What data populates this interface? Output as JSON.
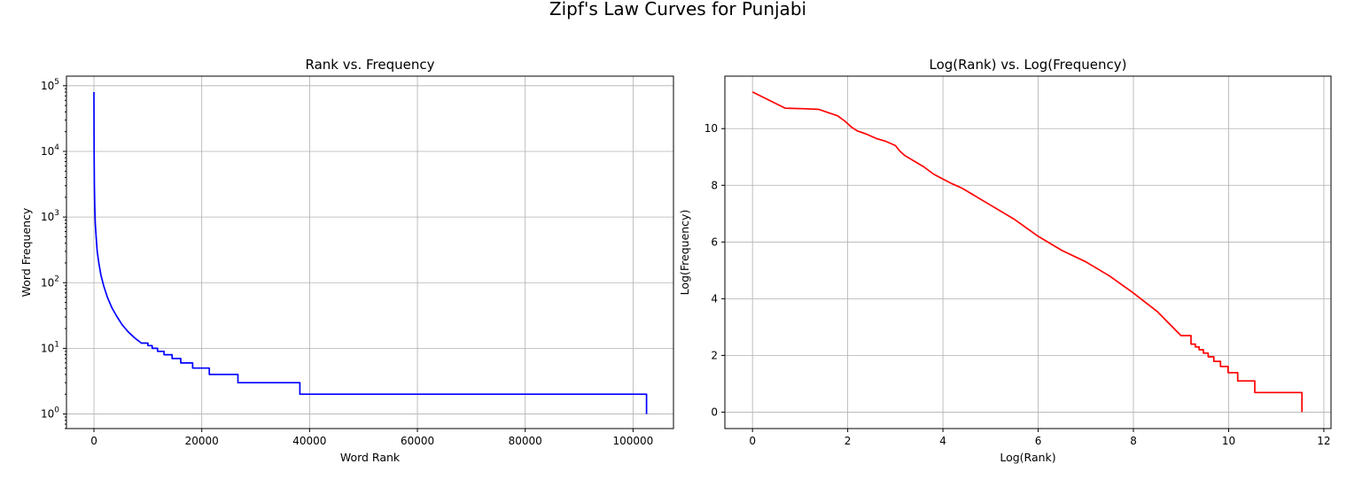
{
  "figure": {
    "suptitle": "Zipf's Law Curves for Punjabi"
  },
  "chart_data": [
    {
      "type": "line",
      "title": "Rank vs. Frequency",
      "xlabel": "Word Rank",
      "ylabel": "Word Frequency",
      "yscale": "log",
      "xlim": [
        -5100,
        107500
      ],
      "ylim": [
        0.6,
        140000
      ],
      "xticks": [
        0,
        20000,
        40000,
        60000,
        80000,
        100000
      ],
      "xtick_labels": [
        "0",
        "20000",
        "40000",
        "60000",
        "80000",
        "100000"
      ],
      "yticks": [
        1,
        10,
        100,
        1000,
        10000,
        100000
      ],
      "ytick_labels": [
        {
          "base": "10",
          "exp": "0"
        },
        {
          "base": "10",
          "exp": "1"
        },
        {
          "base": "10",
          "exp": "2"
        },
        {
          "base": "10",
          "exp": "3"
        },
        {
          "base": "10",
          "exp": "4"
        },
        {
          "base": "10",
          "exp": "5"
        }
      ],
      "grid": true,
      "color": "#0000ff",
      "series": [
        {
          "x": [
            1,
            30,
            80,
            150,
            250,
            400,
            600,
            900,
            1300,
            1800,
            2500,
            3300,
            4200,
            5200,
            6300,
            7500,
            8800,
            10000,
            10800,
            11800,
            13000,
            14500,
            16100,
            18300,
            21400,
            26700,
            38200,
            102500
          ],
          "y": [
            80000,
            10000,
            3000,
            1500,
            800,
            500,
            300,
            200,
            130,
            90,
            60,
            42,
            31,
            23,
            18,
            14.5,
            12,
            11,
            10,
            9,
            8,
            7,
            6,
            5,
            4,
            3,
            2,
            1
          ],
          "step": [
            false,
            false,
            false,
            false,
            false,
            false,
            false,
            false,
            false,
            false,
            false,
            false,
            false,
            false,
            false,
            false,
            false,
            true,
            true,
            true,
            true,
            true,
            true,
            true,
            true,
            true,
            true,
            true
          ]
        }
      ]
    },
    {
      "type": "line",
      "title": "Log(Rank) vs. Log(Frequency)",
      "xlabel": "Log(Rank)",
      "ylabel": "Log(Frequency)",
      "xlim": [
        -0.58,
        12.15
      ],
      "ylim": [
        -0.58,
        11.85
      ],
      "xticks": [
        0,
        2,
        4,
        6,
        8,
        10,
        12
      ],
      "xtick_labels": [
        "0",
        "2",
        "4",
        "6",
        "8",
        "10",
        "12"
      ],
      "yticks": [
        0,
        2,
        4,
        6,
        8,
        10
      ],
      "ytick_labels": [
        "0",
        "2",
        "4",
        "6",
        "8",
        "10"
      ],
      "grid": true,
      "color": "#ff0000",
      "series": [
        {
          "x": [
            0,
            0.69,
            1.1,
            1.39,
            1.61,
            1.79,
            1.95,
            2.08,
            2.2,
            2.4,
            2.6,
            2.8,
            3.0,
            3.1,
            3.2,
            3.4,
            3.6,
            3.8,
            4.0,
            4.2,
            4.4,
            4.6,
            4.8,
            5.0,
            5.5,
            6.0,
            6.5,
            7.0,
            7.5,
            8.0,
            8.5,
            9.0,
            9.21,
            9.3,
            9.38,
            9.47,
            9.57,
            9.69,
            9.83,
            9.99,
            10.19,
            10.55,
            11.54
          ],
          "y": [
            11.29,
            10.72,
            10.7,
            10.68,
            10.55,
            10.45,
            10.25,
            10.05,
            9.92,
            9.8,
            9.65,
            9.55,
            9.4,
            9.2,
            9.05,
            8.85,
            8.65,
            8.4,
            8.22,
            8.05,
            7.9,
            7.7,
            7.5,
            7.3,
            6.8,
            6.2,
            5.7,
            5.3,
            4.8,
            4.2,
            3.55,
            2.7,
            2.4,
            2.3,
            2.2,
            2.08,
            1.95,
            1.79,
            1.61,
            1.39,
            1.1,
            0.69,
            0.0
          ],
          "step": [
            false,
            false,
            false,
            false,
            false,
            false,
            false,
            false,
            false,
            false,
            false,
            false,
            false,
            false,
            false,
            false,
            false,
            false,
            false,
            false,
            false,
            false,
            false,
            false,
            false,
            false,
            false,
            false,
            false,
            false,
            false,
            false,
            true,
            true,
            true,
            true,
            true,
            true,
            true,
            true,
            true,
            true,
            true
          ]
        }
      ]
    }
  ]
}
